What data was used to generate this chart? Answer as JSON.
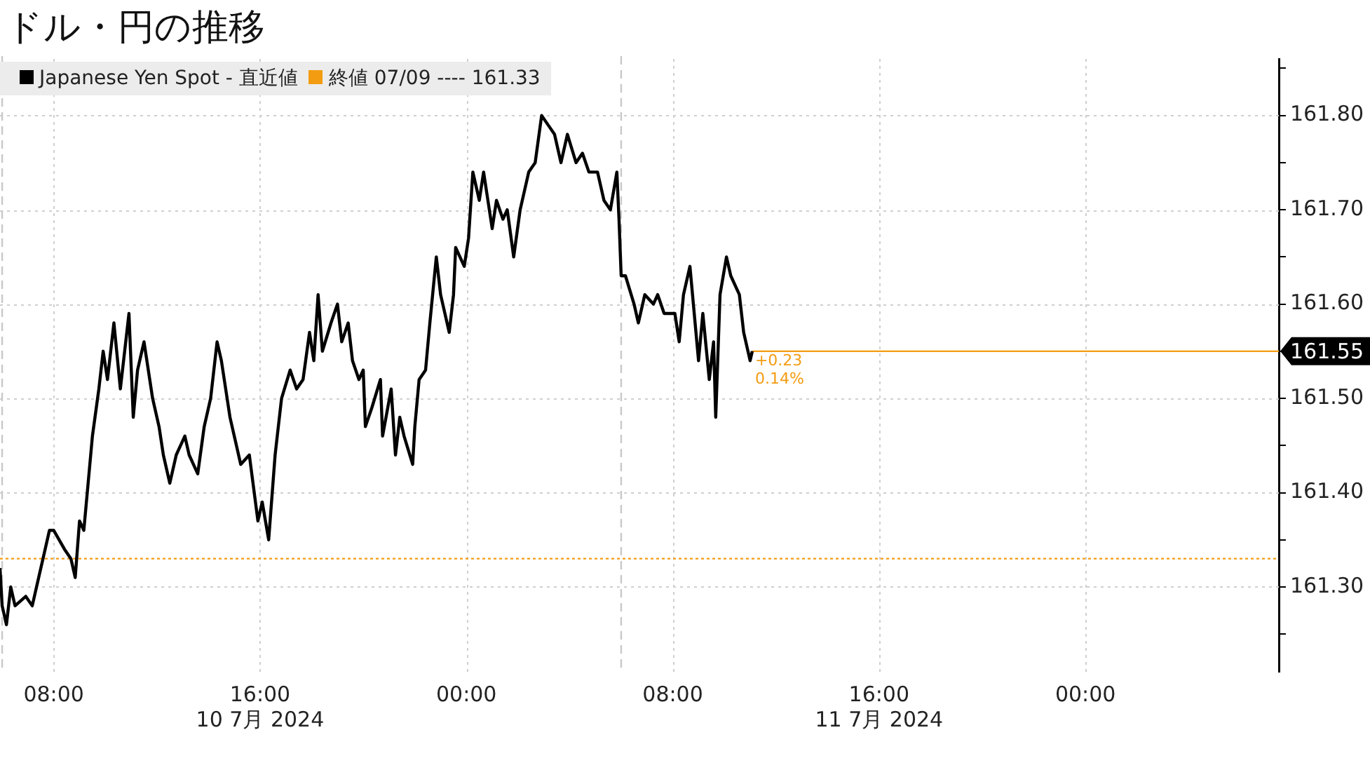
{
  "chart_data": {
    "type": "line",
    "title": "ドル・円の推移",
    "x": [
      "2024-07-10T05:55",
      "2024-07-10T06:00",
      "2024-07-10T06:10",
      "2024-07-10T06:20",
      "2024-07-10T06:30",
      "2024-07-10T06:55",
      "2024-07-10T07:10",
      "2024-07-10T07:25",
      "2024-07-10T07:35",
      "2024-07-10T07:50",
      "2024-07-10T08:00",
      "2024-07-10T08:25",
      "2024-07-10T08:40",
      "2024-07-10T08:50",
      "2024-07-10T09:00",
      "2024-07-10T09:10",
      "2024-07-10T09:20",
      "2024-07-10T09:30",
      "2024-07-10T09:45",
      "2024-07-10T09:55",
      "2024-07-10T10:05",
      "2024-07-10T10:20",
      "2024-07-10T10:35",
      "2024-07-10T10:55",
      "2024-07-10T11:05",
      "2024-07-10T11:15",
      "2024-07-10T11:30",
      "2024-07-10T11:50",
      "2024-07-10T12:05",
      "2024-07-10T12:15",
      "2024-07-10T12:30",
      "2024-07-10T12:45",
      "2024-07-10T13:05",
      "2024-07-10T13:15",
      "2024-07-10T13:35",
      "2024-07-10T13:50",
      "2024-07-10T14:05",
      "2024-07-10T14:20",
      "2024-07-10T14:30",
      "2024-07-10T14:50",
      "2024-07-10T15:05",
      "2024-07-10T15:15",
      "2024-07-10T15:35",
      "2024-07-10T15:55",
      "2024-07-10T16:05",
      "2024-07-10T16:20",
      "2024-07-10T16:35",
      "2024-07-10T16:40",
      "2024-07-10T16:50",
      "2024-07-10T17:10",
      "2024-07-10T17:25",
      "2024-07-10T17:40",
      "2024-07-10T17:55",
      "2024-07-10T18:05",
      "2024-07-10T18:15",
      "2024-07-10T18:25",
      "2024-07-10T18:45",
      "2024-07-10T19:00",
      "2024-07-10T19:10",
      "2024-07-10T19:25",
      "2024-07-10T19:35",
      "2024-07-10T19:50",
      "2024-07-10T20:00",
      "2024-07-10T20:05",
      "2024-07-10T20:20",
      "2024-07-10T20:40",
      "2024-07-10T20:45",
      "2024-07-10T21:05",
      "2024-07-10T21:15",
      "2024-07-10T21:25",
      "2024-07-10T21:35",
      "2024-07-10T21:55",
      "2024-07-10T22:00",
      "2024-07-10T22:10",
      "2024-07-10T22:25",
      "2024-07-10T22:35",
      "2024-07-10T22:50",
      "2024-07-10T23:00",
      "2024-07-10T23:10",
      "2024-07-10T23:20",
      "2024-07-10T23:30",
      "2024-07-10T23:35",
      "2024-07-10T23:55",
      "2024-07-11T00:05",
      "2024-07-11T00:15",
      "2024-07-11T00:30",
      "2024-07-11T00:40",
      "2024-07-11T01:00",
      "2024-07-11T01:10",
      "2024-07-11T01:25",
      "2024-07-11T01:35",
      "2024-07-11T01:50",
      "2024-07-11T02:05",
      "2024-07-11T02:25",
      "2024-07-11T02:40",
      "2024-07-11T02:55",
      "2024-07-11T03:10",
      "2024-07-11T03:25",
      "2024-07-11T03:40",
      "2024-07-11T03:55",
      "2024-07-11T04:15",
      "2024-07-11T04:30",
      "2024-07-11T04:45",
      "2024-07-11T05:05",
      "2024-07-11T05:20",
      "2024-07-11T05:35",
      "2024-07-11T05:50",
      "2024-07-11T05:55",
      "2024-07-11T06:00",
      "2024-07-11T06:10",
      "2024-07-11T06:30",
      "2024-07-11T06:40",
      "2024-07-11T06:55",
      "2024-07-11T07:15",
      "2024-07-11T07:25",
      "2024-07-11T07:40",
      "2024-07-11T08:05",
      "2024-07-11T08:15",
      "2024-07-11T08:25",
      "2024-07-11T08:40",
      "2024-07-11T08:50",
      "2024-07-11T09:00",
      "2024-07-11T09:10",
      "2024-07-11T09:25",
      "2024-07-11T09:35",
      "2024-07-11T09:40",
      "2024-07-11T09:50",
      "2024-07-11T10:05",
      "2024-07-11T10:15",
      "2024-07-11T10:35",
      "2024-07-11T10:45",
      "2024-07-11T11:00",
      "2024-07-11T11:05"
    ],
    "series": [
      {
        "name": "Japanese Yen Spot - 直近値",
        "color": "#000000",
        "values": [
          161.32,
          161.28,
          161.26,
          161.3,
          161.28,
          161.29,
          161.28,
          161.31,
          161.33,
          161.36,
          161.36,
          161.34,
          161.33,
          161.31,
          161.37,
          161.36,
          161.41,
          161.46,
          161.51,
          161.55,
          161.52,
          161.58,
          161.51,
          161.59,
          161.48,
          161.53,
          161.56,
          161.5,
          161.47,
          161.44,
          161.41,
          161.44,
          161.46,
          161.44,
          161.42,
          161.47,
          161.5,
          161.56,
          161.54,
          161.48,
          161.45,
          161.43,
          161.44,
          161.37,
          161.39,
          161.35,
          161.44,
          161.46,
          161.5,
          161.53,
          161.51,
          161.52,
          161.57,
          161.54,
          161.61,
          161.55,
          161.58,
          161.6,
          161.56,
          161.58,
          161.54,
          161.52,
          161.53,
          161.47,
          161.49,
          161.52,
          161.46,
          161.51,
          161.44,
          161.48,
          161.46,
          161.43,
          161.47,
          161.52,
          161.53,
          161.58,
          161.65,
          161.61,
          161.59,
          161.57,
          161.61,
          161.66,
          161.64,
          161.67,
          161.74,
          161.71,
          161.74,
          161.68,
          161.71,
          161.69,
          161.7,
          161.65,
          161.7,
          161.74,
          161.75,
          161.8,
          161.79,
          161.78,
          161.75,
          161.78,
          161.75,
          161.76,
          161.74,
          161.74,
          161.71,
          161.7,
          161.74,
          161.69,
          161.63,
          161.63,
          161.6,
          161.58,
          161.61,
          161.6,
          161.61,
          161.59,
          161.59,
          161.56,
          161.61,
          161.64,
          161.59,
          161.54,
          161.59,
          161.52,
          161.56,
          161.48,
          161.61,
          161.65,
          161.63,
          161.61,
          161.57,
          161.54,
          161.55
        ]
      }
    ],
    "xlim": [
      "2024-07-10T05:55",
      "2024-07-12T07:30"
    ],
    "xticks": [
      {
        "value": "2024-07-10T08:00",
        "label": "08:00"
      },
      {
        "value": "2024-07-10T16:00",
        "label": "16:00\n10 7月 2024"
      },
      {
        "value": "2024-07-11T00:00",
        "label": "00:00"
      },
      {
        "value": "2024-07-11T08:00",
        "label": "08:00"
      },
      {
        "value": "2024-07-11T16:00",
        "label": "16:00\n11 7月 2024"
      },
      {
        "value": "2024-07-12T00:00",
        "label": "00:00"
      }
    ],
    "ylim": [
      161.21,
      161.86
    ],
    "yticks": [
      {
        "value": 161.25,
        "label": null
      },
      {
        "value": 161.3,
        "label": "161.30"
      },
      {
        "value": 161.35,
        "label": null
      },
      {
        "value": 161.4,
        "label": "161.40"
      },
      {
        "value": 161.45,
        "label": null
      },
      {
        "value": 161.5,
        "label": "161.50"
      },
      {
        "value": 161.55,
        "label": null
      },
      {
        "value": 161.6,
        "label": "161.60"
      },
      {
        "value": 161.65,
        "label": null
      },
      {
        "value": 161.7,
        "label": "161.70"
      },
      {
        "value": 161.75,
        "label": null
      },
      {
        "value": 161.8,
        "label": "161.80"
      },
      {
        "value": 161.85,
        "label": null
      }
    ],
    "grid": true,
    "legend": "top left",
    "ref_lines": [
      {
        "axis": "y",
        "value": 161.33,
        "label": "終値 07/09 ---- 161.33",
        "color": "#f39c12",
        "line_style": "dotted"
      },
      {
        "axis": "y",
        "value": 161.55,
        "label": "161.55",
        "color": "#f39c12",
        "line_style": "solid"
      },
      {
        "axis": "x",
        "value": "2024-07-10T06:00",
        "color": "#c8c8c8",
        "line_style": "dashed"
      },
      {
        "axis": "x",
        "value": "2024-07-11T06:00",
        "color": "#c8c8c8",
        "line_style": "dashed"
      }
    ],
    "annotations": [
      {
        "text": "+0.23",
        "x": "2024-07-11T11:05",
        "y": 161.55
      },
      {
        "text": "0.14%",
        "x": "2024-07-11T11:05",
        "y": 161.55
      }
    ]
  }
}
